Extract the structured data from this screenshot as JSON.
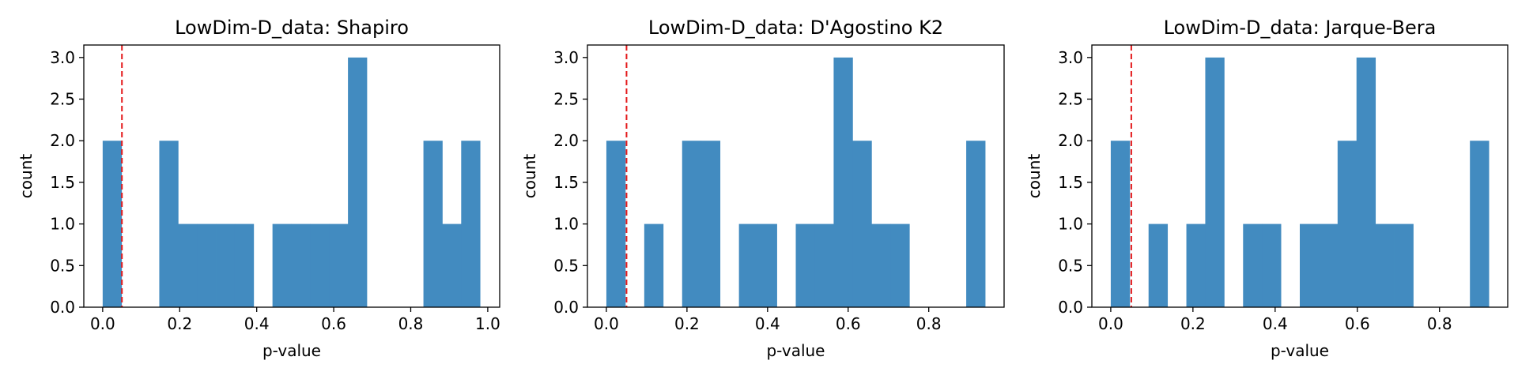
{
  "chart_data": [
    {
      "type": "bar",
      "title": "LowDim-D_data: Shapiro",
      "xlabel": "p-value",
      "ylabel": "count",
      "xlim": [
        -0.049,
        1.031
      ],
      "ylim": [
        0,
        3.15
      ],
      "xticks": [
        0.0,
        0.2,
        0.4,
        0.6,
        0.8,
        1.0
      ],
      "xtick_labels": [
        "0.0",
        "0.2",
        "0.4",
        "0.6",
        "0.8",
        "1.0"
      ],
      "yticks": [
        0,
        0.5,
        1,
        1.5,
        2,
        2.5,
        3
      ],
      "ytick_labels": [
        "0.0",
        "0.5",
        "1.0",
        "1.5",
        "2.0",
        "2.5",
        "3.0"
      ],
      "threshold": 0.05,
      "threshold_color": "#e41a1c",
      "bar_color": "#428bc0",
      "bins": [
        {
          "x0": 0.0,
          "x1": 0.049,
          "count": 2
        },
        {
          "x0": 0.147,
          "x1": 0.196,
          "count": 2
        },
        {
          "x0": 0.196,
          "x1": 0.245,
          "count": 1
        },
        {
          "x0": 0.245,
          "x1": 0.294,
          "count": 1
        },
        {
          "x0": 0.294,
          "x1": 0.343,
          "count": 1
        },
        {
          "x0": 0.343,
          "x1": 0.392,
          "count": 1
        },
        {
          "x0": 0.441,
          "x1": 0.49,
          "count": 1
        },
        {
          "x0": 0.49,
          "x1": 0.539,
          "count": 1
        },
        {
          "x0": 0.539,
          "x1": 0.588,
          "count": 1
        },
        {
          "x0": 0.588,
          "x1": 0.637,
          "count": 1
        },
        {
          "x0": 0.637,
          "x1": 0.686,
          "count": 3
        },
        {
          "x0": 0.833,
          "x1": 0.882,
          "count": 2
        },
        {
          "x0": 0.882,
          "x1": 0.931,
          "count": 1
        },
        {
          "x0": 0.931,
          "x1": 0.98,
          "count": 2
        }
      ]
    },
    {
      "type": "bar",
      "title": "LowDim-D_data: D'Agostino K2",
      "xlabel": "p-value",
      "ylabel": "count",
      "xlim": [
        -0.047,
        0.987
      ],
      "ylim": [
        0,
        3.15
      ],
      "xticks": [
        0.0,
        0.2,
        0.4,
        0.6,
        0.8
      ],
      "xtick_labels": [
        "0.0",
        "0.2",
        "0.4",
        "0.6",
        "0.8"
      ],
      "yticks": [
        0,
        0.5,
        1,
        1.5,
        2,
        2.5,
        3
      ],
      "ytick_labels": [
        "0.0",
        "0.5",
        "1.0",
        "1.5",
        "2.0",
        "2.5",
        "3.0"
      ],
      "threshold": 0.05,
      "threshold_color": "#e41a1c",
      "bar_color": "#428bc0",
      "bins": [
        {
          "x0": 0.0,
          "x1": 0.047,
          "count": 2
        },
        {
          "x0": 0.094,
          "x1": 0.141,
          "count": 1
        },
        {
          "x0": 0.188,
          "x1": 0.235,
          "count": 2
        },
        {
          "x0": 0.235,
          "x1": 0.282,
          "count": 2
        },
        {
          "x0": 0.329,
          "x1": 0.376,
          "count": 1
        },
        {
          "x0": 0.376,
          "x1": 0.423,
          "count": 1
        },
        {
          "x0": 0.47,
          "x1": 0.517,
          "count": 1
        },
        {
          "x0": 0.517,
          "x1": 0.564,
          "count": 1
        },
        {
          "x0": 0.564,
          "x1": 0.611,
          "count": 3
        },
        {
          "x0": 0.611,
          "x1": 0.658,
          "count": 2
        },
        {
          "x0": 0.658,
          "x1": 0.705,
          "count": 1
        },
        {
          "x0": 0.705,
          "x1": 0.752,
          "count": 1
        },
        {
          "x0": 0.893,
          "x1": 0.94,
          "count": 2
        }
      ]
    },
    {
      "type": "bar",
      "title": "LowDim-D_data: Jarque-Bera",
      "xlabel": "p-value",
      "ylabel": "count",
      "xlim": [
        -0.046,
        0.966
      ],
      "ylim": [
        0,
        3.15
      ],
      "xticks": [
        0.0,
        0.2,
        0.4,
        0.6,
        0.8
      ],
      "xtick_labels": [
        "0.0",
        "0.2",
        "0.4",
        "0.6",
        "0.8"
      ],
      "yticks": [
        0,
        0.5,
        1,
        1.5,
        2,
        2.5,
        3
      ],
      "ytick_labels": [
        "0.0",
        "0.5",
        "1.0",
        "1.5",
        "2.0",
        "2.5",
        "3.0"
      ],
      "threshold": 0.05,
      "threshold_color": "#e41a1c",
      "bar_color": "#428bc0",
      "bins": [
        {
          "x0": 0.0,
          "x1": 0.046,
          "count": 2
        },
        {
          "x0": 0.092,
          "x1": 0.138,
          "count": 1
        },
        {
          "x0": 0.184,
          "x1": 0.23,
          "count": 1
        },
        {
          "x0": 0.23,
          "x1": 0.276,
          "count": 3
        },
        {
          "x0": 0.322,
          "x1": 0.368,
          "count": 1
        },
        {
          "x0": 0.368,
          "x1": 0.414,
          "count": 1
        },
        {
          "x0": 0.46,
          "x1": 0.506,
          "count": 1
        },
        {
          "x0": 0.506,
          "x1": 0.552,
          "count": 1
        },
        {
          "x0": 0.552,
          "x1": 0.598,
          "count": 2
        },
        {
          "x0": 0.598,
          "x1": 0.644,
          "count": 3
        },
        {
          "x0": 0.644,
          "x1": 0.69,
          "count": 1
        },
        {
          "x0": 0.69,
          "x1": 0.736,
          "count": 1
        },
        {
          "x0": 0.874,
          "x1": 0.92,
          "count": 2
        }
      ]
    }
  ]
}
